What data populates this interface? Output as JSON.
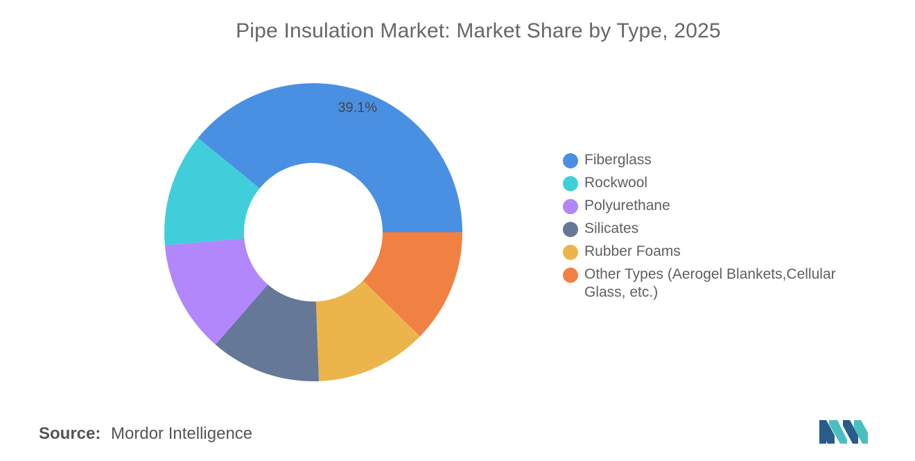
{
  "title": "Pipe Insulation Market: Market Share by Type, 2025",
  "source": {
    "prefix": "Source:",
    "name": "Mordor Intelligence"
  },
  "chart_data": {
    "type": "pie",
    "subtype": "donut",
    "title": "Pipe Insulation Market: Market Share by Type, 2025",
    "legend_position": "right",
    "value_units": "percent",
    "slices": [
      {
        "label": "Fiberglass",
        "value": 39.1,
        "color": "#4a90e2",
        "data_label": "39.1%"
      },
      {
        "label": "Other Types (Aerogel Blankets,Cellular Glass, etc.)",
        "value": 12.3,
        "color": "#f08143",
        "data_label": ""
      },
      {
        "label": "Rubber Foams",
        "value": 12.1,
        "color": "#ebb54c",
        "data_label": ""
      },
      {
        "label": "Silicates",
        "value": 12.0,
        "color": "#657897",
        "data_label": ""
      },
      {
        "label": "Polyurethane",
        "value": 12.2,
        "color": "#b187fb",
        "data_label": ""
      },
      {
        "label": "Rockwool",
        "value": 12.3,
        "color": "#40cfda",
        "data_label": ""
      }
    ]
  },
  "legend": {
    "items": [
      {
        "label": "Fiberglass",
        "color": "#4a90e2"
      },
      {
        "label": "Rockwool",
        "color": "#40cfda"
      },
      {
        "label": "Polyurethane",
        "color": "#b187fb"
      },
      {
        "label": "Silicates",
        "color": "#657897"
      },
      {
        "label": "Rubber Foams",
        "color": "#ebb54c"
      },
      {
        "label": "Other Types (Aerogel Blankets,Cellular Glass, etc.)",
        "color": "#f08143"
      }
    ]
  },
  "logo": {
    "icon": "mordor-intelligence-logo-icon",
    "colors": [
      "#2a5c8a",
      "#4bbfc0"
    ]
  }
}
